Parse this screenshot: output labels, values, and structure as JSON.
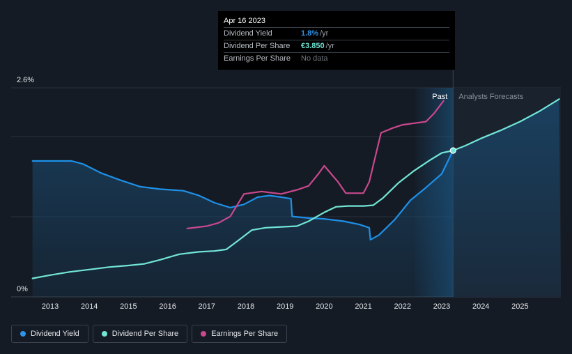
{
  "chart_data": {
    "type": "line",
    "x_ticks": [
      "2013",
      "2014",
      "2015",
      "2016",
      "2017",
      "2018",
      "2019",
      "2020",
      "2021",
      "2022",
      "2023",
      "2024",
      "2025"
    ],
    "y_ticks": [
      "0%",
      "2.6%"
    ],
    "ylim": [
      0,
      2.6
    ],
    "past_label": "Past",
    "forecast_label": "Analysts Forecasts",
    "series": [
      {
        "name": "Dividend Yield",
        "color": "#1e90e6",
        "points": [
          [
            2012.55,
            1.69
          ],
          [
            2013.55,
            1.69
          ],
          [
            2013.85,
            1.65
          ],
          [
            2014.3,
            1.54
          ],
          [
            2014.8,
            1.45
          ],
          [
            2015.3,
            1.37
          ],
          [
            2015.8,
            1.34
          ],
          [
            2016.4,
            1.32
          ],
          [
            2016.8,
            1.26
          ],
          [
            2017.2,
            1.17
          ],
          [
            2017.6,
            1.11
          ],
          [
            2017.95,
            1.15
          ],
          [
            2018.3,
            1.24
          ],
          [
            2018.6,
            1.26
          ],
          [
            2018.9,
            1.24
          ],
          [
            2019.15,
            1.22
          ],
          [
            2019.18,
            1.0
          ],
          [
            2019.6,
            0.98
          ],
          [
            2020.0,
            0.97
          ],
          [
            2020.5,
            0.94
          ],
          [
            2020.9,
            0.9
          ],
          [
            2021.15,
            0.86
          ],
          [
            2021.18,
            0.71
          ],
          [
            2021.4,
            0.77
          ],
          [
            2021.8,
            0.96
          ],
          [
            2022.2,
            1.2
          ],
          [
            2022.6,
            1.36
          ],
          [
            2023.0,
            1.53
          ],
          [
            2023.29,
            1.82
          ]
        ]
      },
      {
        "name": "Dividend Per Share",
        "color": "#72e6d6",
        "points": [
          [
            2012.55,
            0.23
          ],
          [
            2013.0,
            0.27
          ],
          [
            2013.5,
            0.31
          ],
          [
            2014.0,
            0.34
          ],
          [
            2014.5,
            0.37
          ],
          [
            2015.0,
            0.39
          ],
          [
            2015.4,
            0.41
          ],
          [
            2015.8,
            0.46
          ],
          [
            2016.3,
            0.53
          ],
          [
            2016.8,
            0.56
          ],
          [
            2017.2,
            0.57
          ],
          [
            2017.5,
            0.59
          ],
          [
            2017.8,
            0.7
          ],
          [
            2018.15,
            0.83
          ],
          [
            2018.5,
            0.86
          ],
          [
            2018.9,
            0.87
          ],
          [
            2019.3,
            0.88
          ],
          [
            2019.6,
            0.94
          ],
          [
            2020.0,
            1.05
          ],
          [
            2020.3,
            1.12
          ],
          [
            2020.6,
            1.13
          ],
          [
            2021.0,
            1.13
          ],
          [
            2021.25,
            1.14
          ],
          [
            2021.5,
            1.23
          ],
          [
            2021.9,
            1.42
          ],
          [
            2022.3,
            1.57
          ],
          [
            2022.7,
            1.7
          ],
          [
            2023.0,
            1.79
          ],
          [
            2023.29,
            1.82
          ],
          [
            2023.6,
            1.88
          ],
          [
            2024.0,
            1.97
          ],
          [
            2024.5,
            2.07
          ],
          [
            2025.0,
            2.18
          ],
          [
            2025.5,
            2.31
          ],
          [
            2026.0,
            2.46
          ]
        ]
      },
      {
        "name": "Earnings Per Share",
        "color": "#c9488e",
        "points": [
          [
            2016.5,
            0.85
          ],
          [
            2017.0,
            0.88
          ],
          [
            2017.3,
            0.92
          ],
          [
            2017.6,
            1.0
          ],
          [
            2017.95,
            1.28
          ],
          [
            2018.4,
            1.31
          ],
          [
            2018.9,
            1.28
          ],
          [
            2019.3,
            1.33
          ],
          [
            2019.6,
            1.38
          ],
          [
            2019.85,
            1.53
          ],
          [
            2020.0,
            1.63
          ],
          [
            2020.35,
            1.43
          ],
          [
            2020.55,
            1.29
          ],
          [
            2021.0,
            1.29
          ],
          [
            2021.15,
            1.43
          ],
          [
            2021.45,
            2.04
          ],
          [
            2021.75,
            2.1
          ],
          [
            2022.0,
            2.14
          ],
          [
            2022.3,
            2.16
          ],
          [
            2022.6,
            2.18
          ],
          [
            2022.8,
            2.28
          ],
          [
            2023.05,
            2.44
          ]
        ]
      }
    ],
    "marker": {
      "x": 2023.29,
      "y": 1.82
    }
  },
  "tooltip": {
    "date": "Apr 16 2023",
    "rows": [
      {
        "label": "Dividend Yield",
        "value": "1.8%",
        "unit": "/yr",
        "color": "#2f93e8"
      },
      {
        "label": "Dividend Per Share",
        "value": "€3.850",
        "unit": "/yr",
        "color": "#72e6d6"
      },
      {
        "label": "Earnings Per Share",
        "nodata": "No data"
      }
    ]
  },
  "legend": [
    {
      "label": "Dividend Yield",
      "color": "#2f93e8"
    },
    {
      "label": "Dividend Per Share",
      "color": "#72e6d6"
    },
    {
      "label": "Earnings Per Share",
      "color": "#c9488e"
    }
  ]
}
